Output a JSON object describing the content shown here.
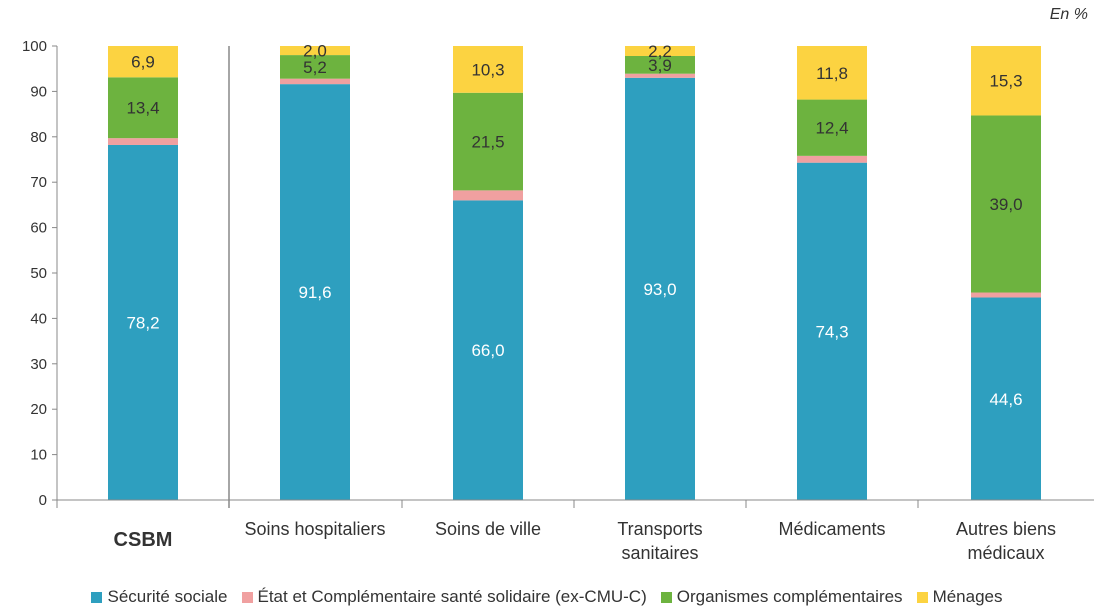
{
  "unit_label": "En %",
  "colors": {
    "securite_sociale": "#2e9fbf",
    "etat": "#f0a0a0",
    "organismes": "#6db33f",
    "menages": "#fcd341",
    "axis": "#888888",
    "inner_label_light": "#ffffff",
    "inner_label_dark": "#333333"
  },
  "chart_data": {
    "type": "bar",
    "stacked": true,
    "title": "",
    "xlabel": "",
    "ylabel": "",
    "ylim": [
      0,
      100
    ],
    "yticks": [
      0,
      10,
      20,
      30,
      40,
      50,
      60,
      70,
      80,
      90,
      100
    ],
    "grid": false,
    "legend_position": "bottom",
    "categories": [
      [
        "CSBM"
      ],
      [
        "Soins hospitaliers"
      ],
      [
        "Soins de ville"
      ],
      [
        "Transports",
        "sanitaires"
      ],
      [
        "Médicaments"
      ],
      [
        "Autres biens",
        "médicaux"
      ]
    ],
    "series": [
      {
        "name": "Sécurité sociale",
        "color_key": "securite_sociale",
        "values": [
          78.2,
          91.6,
          66.0,
          93.0,
          74.3,
          44.6
        ],
        "labels": [
          "78,2",
          "91,6",
          "66,0",
          "93,0",
          "74,3",
          "44,6"
        ]
      },
      {
        "name": "État et Complémentaire santé solidaire (ex-CMU-C)",
        "color_key": "etat",
        "values": [
          1.5,
          1.2,
          2.2,
          0.9,
          1.5,
          1.1
        ],
        "labels": [
          "",
          "",
          "",
          "",
          "",
          ""
        ]
      },
      {
        "name": "Organismes complémentaires",
        "color_key": "organismes",
        "values": [
          13.4,
          5.2,
          21.5,
          3.9,
          12.4,
          39.0
        ],
        "labels": [
          "13,4",
          "5,2",
          "21,5",
          "3,9",
          "12,4",
          "39,0"
        ]
      },
      {
        "name": "Ménages",
        "color_key": "menages",
        "values": [
          6.9,
          2.0,
          10.3,
          2.2,
          11.8,
          15.3
        ],
        "labels": [
          "6,9",
          "2,0",
          "10,3",
          "2,2",
          "11,8",
          "15,3"
        ]
      }
    ]
  }
}
